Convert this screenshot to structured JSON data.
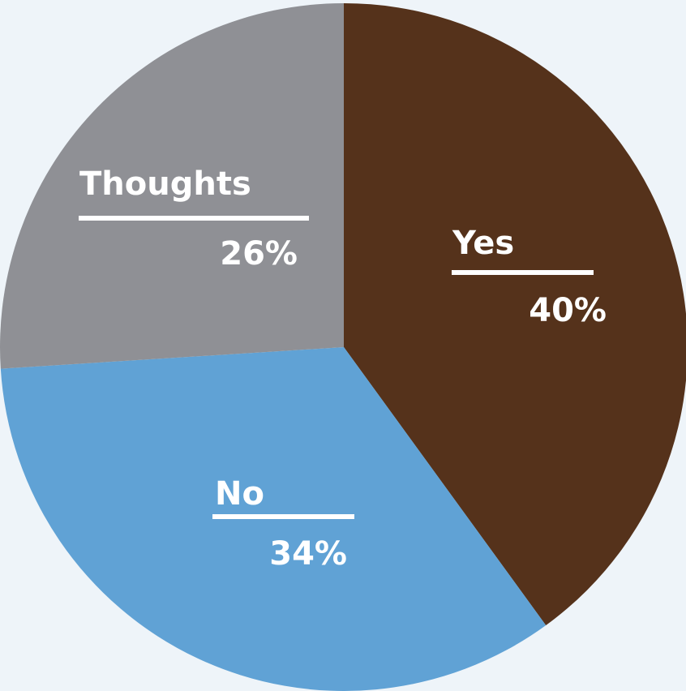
{
  "chart_data": {
    "type": "pie",
    "title": "",
    "slices": [
      {
        "label": "Yes",
        "value": 40,
        "display": "40%",
        "color": "#55321b"
      },
      {
        "label": "No",
        "value": 34,
        "display": "34%",
        "color": "#60a2d5"
      },
      {
        "label": "Thoughts",
        "value": 26,
        "display": "26%",
        "color": "#8f9095"
      }
    ],
    "start_angle_deg": 0,
    "direction": "clockwise",
    "legend": "none",
    "label_style": "name above underline, percent below"
  },
  "background_color": "#eef4f9",
  "label_color": "#ffffff"
}
